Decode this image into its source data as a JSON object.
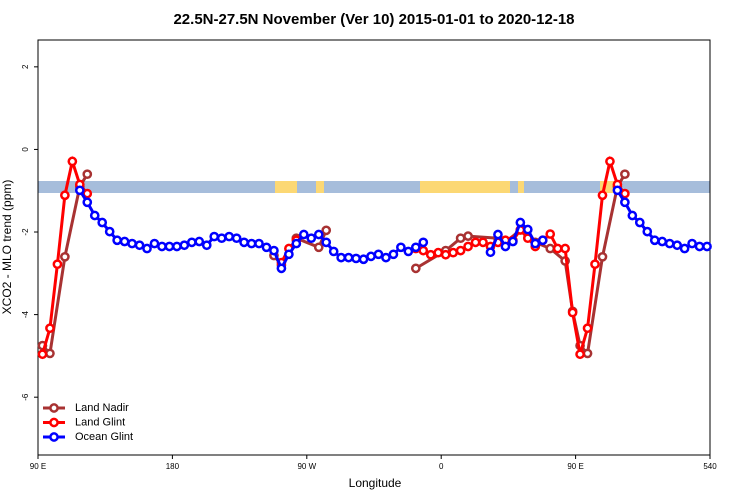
{
  "chart_data": {
    "type": "line",
    "title": "22.5N-27.5N November (Ver 10)   2015-01-01 to 2020-12-18",
    "x_label": "Longitude",
    "y_label": "XCO2 - MLO trend (ppm)",
    "xlim": [
      90,
      540
    ],
    "xticks": [
      {
        "value": 90,
        "label": "90 E"
      },
      180,
      {
        "value": 270,
        "label": "90 W"
      },
      {
        "value": 360,
        "label": "0"
      },
      {
        "value": 450,
        "label": "90 E"
      },
      540
    ],
    "ylim": [
      -7.4,
      2.65
    ],
    "yticks": [
      2,
      0,
      -2,
      -4,
      -6
    ],
    "legend": "bottom-left",
    "series": [
      {
        "name": "Land Nadir",
        "color": "#a83232",
        "x": [
          93,
          98,
          108,
          118,
          123,
          200,
          248,
          253,
          263,
          278,
          283,
          300,
          343,
          363,
          373,
          378,
          398,
          403,
          413,
          423,
          433,
          443,
          448,
          453,
          458,
          468,
          478,
          483
        ],
        "values": [
          -4.75,
          -4.94,
          -2.6,
          -0.9,
          -0.6,
          null,
          -2.57,
          -2.8,
          -2.15,
          -2.37,
          -1.96,
          null,
          -2.88,
          -2.45,
          -2.15,
          -2.1,
          -2.15,
          -2.25,
          -1.95,
          -2.25,
          -2.4,
          -2.7,
          -3.92,
          -4.75,
          -4.94,
          -2.6,
          -0.9,
          -0.6
        ]
      },
      {
        "name": "Land Glint",
        "color": "#ff0000",
        "x": [
          93,
          98,
          103,
          108,
          113,
          118,
          123,
          200,
          253,
          258,
          263,
          300,
          343,
          348,
          353,
          358,
          363,
          368,
          373,
          378,
          383,
          388,
          393,
          398,
          403,
          408,
          413,
          418,
          423,
          428,
          433,
          438,
          443,
          448,
          453,
          458,
          463,
          468,
          473,
          478,
          483
        ],
        "values": [
          -4.96,
          -4.33,
          -2.78,
          -1.11,
          -0.29,
          -0.85,
          -1.07,
          null,
          -2.74,
          -2.4,
          -2.2,
          null,
          -2.4,
          -2.45,
          -2.55,
          -2.5,
          -2.55,
          -2.5,
          -2.45,
          -2.35,
          -2.25,
          -2.25,
          -2.35,
          -2.25,
          -2.2,
          -2.2,
          -1.95,
          -2.15,
          -2.35,
          -2.2,
          -2.05,
          -2.4,
          -2.4,
          -3.95,
          -4.96,
          -4.33,
          -2.78,
          -1.11,
          -0.29,
          -0.85,
          -1.07
        ]
      },
      {
        "name": "Ocean Glint",
        "color": "#0000ff",
        "x": [
          118,
          123,
          128,
          133,
          138,
          143,
          148,
          153,
          158,
          163,
          168,
          173,
          178,
          183,
          188,
          193,
          198,
          203,
          208,
          213,
          218,
          223,
          228,
          233,
          238,
          243,
          248,
          253,
          258,
          263,
          268,
          273,
          278,
          283,
          288,
          293,
          298,
          303,
          308,
          313,
          318,
          323,
          328,
          333,
          338,
          343,
          348,
          370,
          393,
          398,
          403,
          408,
          413,
          418,
          423,
          428,
          450,
          478,
          483,
          488,
          493,
          498,
          503,
          508,
          513,
          518,
          523,
          528,
          533,
          538
        ],
        "values": [
          -0.99,
          -1.28,
          -1.6,
          -1.77,
          -1.99,
          -2.2,
          -2.23,
          -2.28,
          -2.32,
          -2.4,
          -2.28,
          -2.35,
          -2.35,
          -2.35,
          -2.32,
          -2.25,
          -2.23,
          -2.32,
          -2.11,
          -2.15,
          -2.11,
          -2.15,
          -2.25,
          -2.28,
          -2.28,
          -2.37,
          -2.45,
          -2.88,
          -2.54,
          -2.28,
          -2.06,
          -2.15,
          -2.06,
          -2.25,
          -2.47,
          -2.62,
          -2.62,
          -2.64,
          -2.66,
          -2.59,
          -2.54,
          -2.62,
          -2.54,
          -2.37,
          -2.47,
          -2.37,
          -2.25,
          null,
          -2.49,
          -2.06,
          -2.35,
          -2.23,
          -1.77,
          -1.94,
          -2.28,
          -2.2,
          null,
          -0.99,
          -1.28,
          -1.6,
          -1.77,
          -1.99,
          -2.2,
          -2.23,
          -2.28,
          -2.32,
          -2.4,
          -2.28,
          -2.35,
          -2.35
        ]
      }
    ]
  }
}
